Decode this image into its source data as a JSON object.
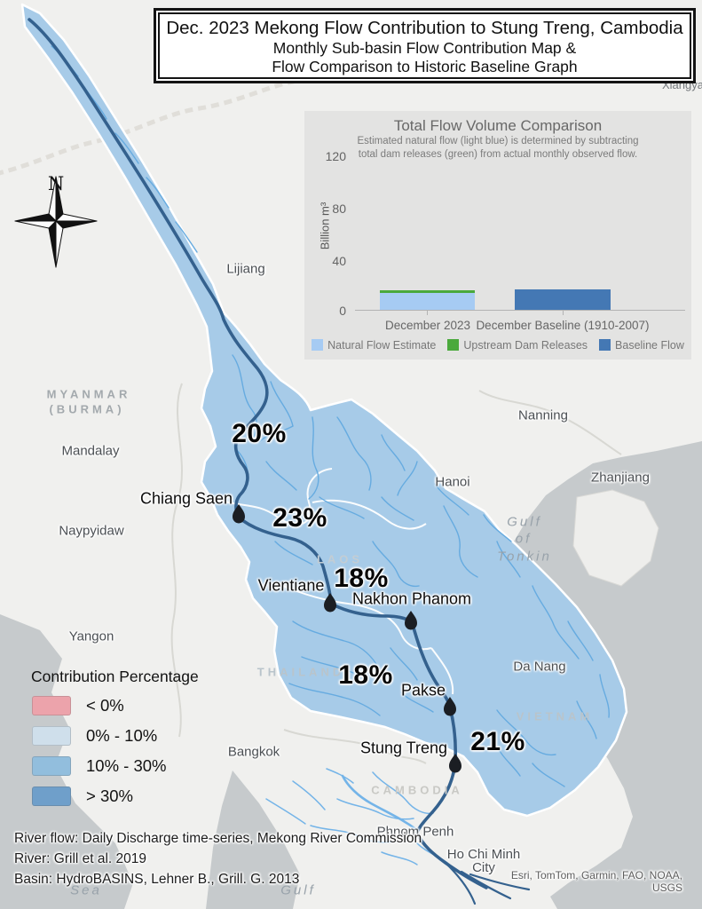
{
  "title": {
    "line1": "Dec. 2023 Mekong Flow Contribution to Stung Treng, Cambodia",
    "line2": "Monthly Sub-basin Flow Contribution Map &",
    "line3": "Flow Comparison to Historic Baseline Graph"
  },
  "compass": {
    "north_label": "N"
  },
  "chart_data": {
    "type": "bar",
    "title": "Total Flow Volume Comparison",
    "subtitle": "Estimated natural flow (light blue) is determined by subtracting total dam releases (green) from actual monthly observed flow.",
    "ylabel": "Billion m³",
    "ylim": [
      0,
      120
    ],
    "yticks": [
      0,
      40,
      80,
      120
    ],
    "categories": [
      "December 2023",
      "December Baseline (1910-2007)"
    ],
    "series": [
      {
        "name": "Natural Flow Estimate",
        "color": "#a6cbf3",
        "values": [
          13,
          0
        ]
      },
      {
        "name": "Upstream Dam Releases",
        "color": "#4aa93c",
        "values": [
          2.5,
          0
        ]
      },
      {
        "name": "Baseline Flow",
        "color": "#4478b4",
        "values": [
          0,
          16
        ]
      }
    ],
    "legend_position": "bottom",
    "grid": false
  },
  "map": {
    "percents": [
      "20%",
      "23%",
      "18%",
      "18%",
      "21%"
    ],
    "gauges": {
      "chiang_saen": "Chiang Saen",
      "vientiane": "Vientiane",
      "nakhon_phanom": "Nakhon Phanom",
      "pakse": "Pakse",
      "stung_treng": "Stung Treng"
    },
    "cities": {
      "lijiang": "Lijiang",
      "mandalay": "Mandalay",
      "naypyidaw": "Naypyidaw",
      "yangon": "Yangon",
      "bangkok": "Bangkok",
      "hanoi": "Hanoi",
      "nanning": "Nanning",
      "zhanjiang": "Zhanjiang",
      "da_nang": "Da Nang",
      "phnom_penh": "Phnom Penh",
      "ho_chi_minh": "Ho Chi Minh City",
      "xiangyang": "Xiangyang"
    },
    "countries": {
      "myanmar": "MYANMAR",
      "burma": "(BURMA)",
      "laos": "LAOS",
      "thailand": "THAILAND",
      "vietnam": "VIETNAM",
      "cambodia": "CAMBODIA"
    },
    "waters": {
      "gulf_tonkin_1": "Gulf",
      "gulf_tonkin_2": "of",
      "gulf_tonkin_3": "Tonkin",
      "sea": "Sea",
      "gulf": "Gulf"
    }
  },
  "legend": {
    "title": "Contribution Percentage",
    "items": [
      {
        "label": "< 0%",
        "color": "#eca3ab"
      },
      {
        "label": "0% - 10%",
        "color": "#cfdfeb"
      },
      {
        "label": "10% - 30%",
        "color": "#92bedd"
      },
      {
        "label": "> 30%",
        "color": "#6f9fca"
      }
    ]
  },
  "sources": {
    "line1": "River flow: Daily Discharge time-series, Mekong River Commission",
    "line2": "River: Grill et al. 2019",
    "line3": "Basin: HydroBASINS, Lehner B., Grill. G. 2013"
  },
  "attribution": "Esri, TomTom, Garmin, FAO, NOAA, USGS",
  "colors": {
    "land": "#f0f0ee",
    "sea": "#c6cacc",
    "basin_fill": "#a7cbe8",
    "river_main": "#34618e",
    "tributary": "#66abe0",
    "cambodia_river": "#74b4e8"
  }
}
